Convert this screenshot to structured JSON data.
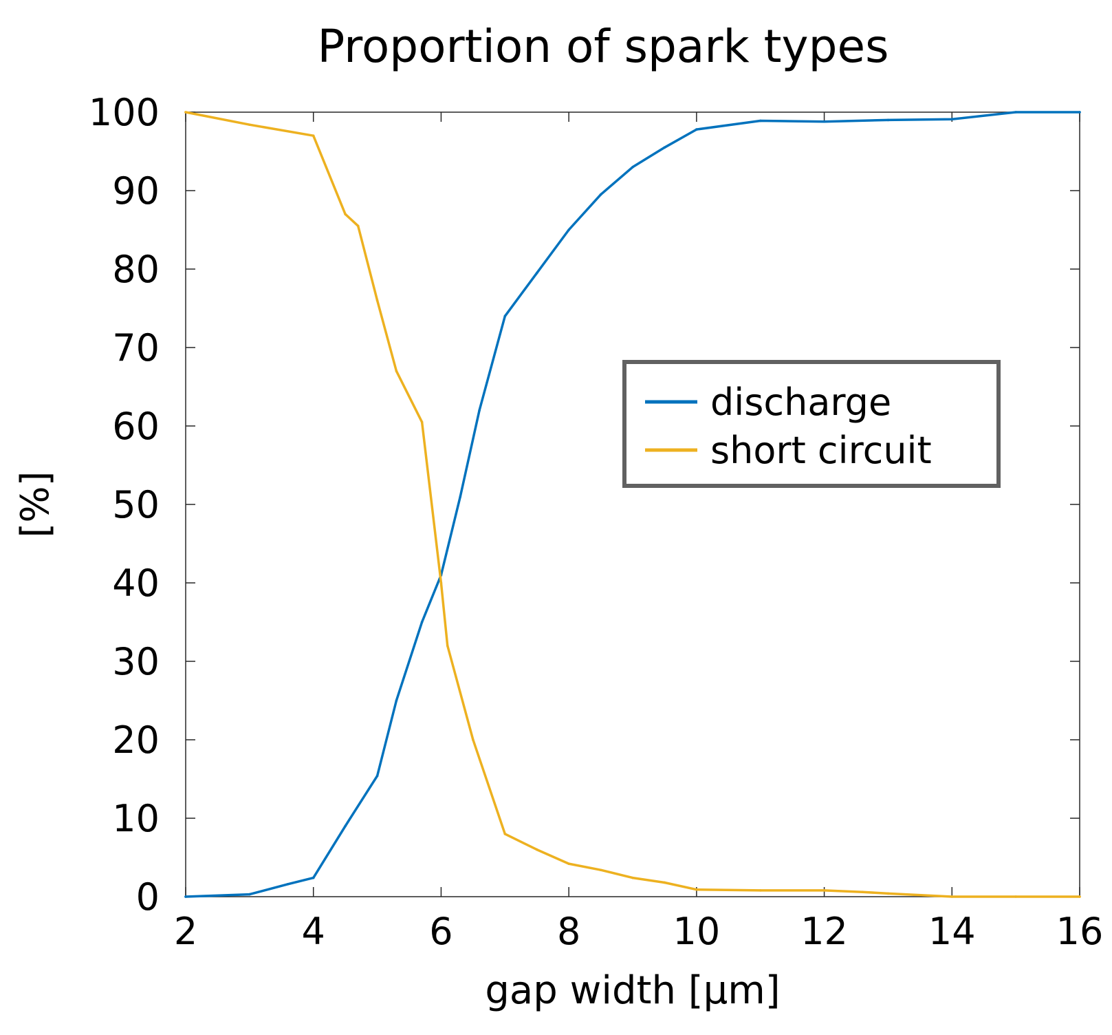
{
  "chart_data": {
    "type": "line",
    "title": "Proportion of spark types",
    "xlabel": "gap width [μm]",
    "ylabel": "[%]",
    "xlim": [
      2,
      16
    ],
    "ylim": [
      0,
      100
    ],
    "xticks": [
      2,
      4,
      6,
      8,
      10,
      12,
      14,
      16
    ],
    "yticks": [
      0,
      10,
      20,
      30,
      40,
      50,
      60,
      70,
      80,
      90,
      100
    ],
    "grid": false,
    "legend_position": "center-right",
    "series": [
      {
        "name": "discharge",
        "color": "#0072BD",
        "x": [
          2,
          3,
          3.6,
          4,
          4.5,
          5,
          5.3,
          5.7,
          6,
          6.3,
          6.6,
          7,
          7.5,
          8,
          8.5,
          9,
          9.5,
          10,
          11,
          12,
          13,
          14,
          15,
          16
        ],
        "y": [
          0,
          0.3,
          1.6,
          2.4,
          9,
          15.4,
          25,
          35,
          41,
          51,
          62,
          74,
          79.5,
          85,
          89.5,
          93,
          95.5,
          97.8,
          98.9,
          98.8,
          99,
          99.1,
          100,
          100
        ]
      },
      {
        "name": "short circuit",
        "color": "#EDB120",
        "x": [
          2,
          3,
          4,
          4.5,
          4.7,
          5,
          5.3,
          5.7,
          6,
          6.1,
          6.5,
          7,
          7.5,
          8,
          8.5,
          9,
          9.5,
          10,
          11,
          12,
          12.6,
          13,
          14,
          15,
          16
        ],
        "y": [
          100,
          98.4,
          97,
          87,
          85.5,
          76,
          67,
          60.5,
          40,
          32,
          20,
          8,
          6,
          4.2,
          3.4,
          2.4,
          1.8,
          0.9,
          0.8,
          0.8,
          0.6,
          0.4,
          0,
          0,
          0
        ]
      }
    ]
  }
}
